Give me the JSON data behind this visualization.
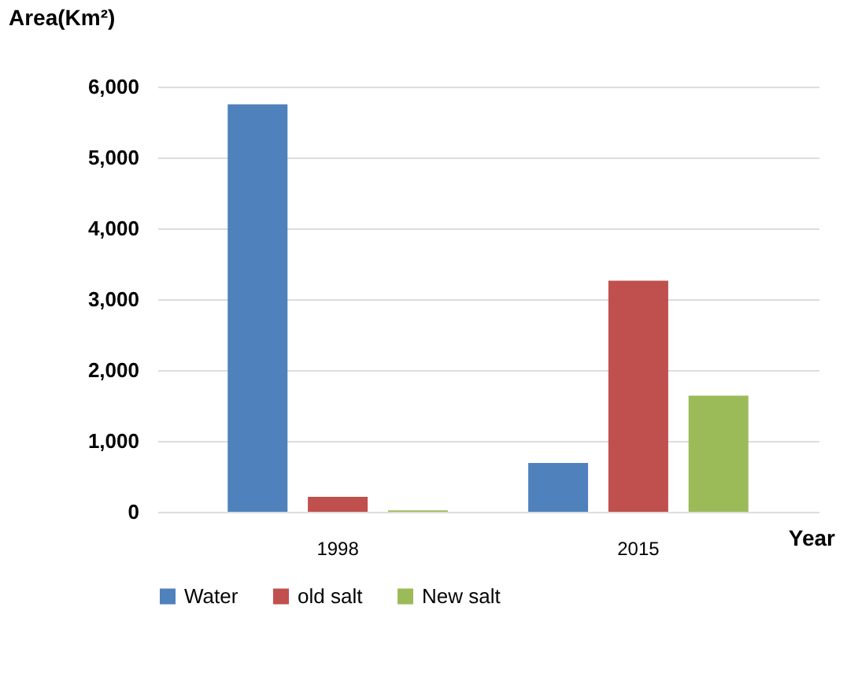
{
  "chart_data": {
    "type": "bar",
    "ylabel": "Area(Km²)",
    "xlabel": "Year",
    "categories": [
      "1998",
      "2015"
    ],
    "series": [
      {
        "name": "Water",
        "color": "#4f81bd",
        "values": [
          5750,
          690
        ]
      },
      {
        "name": "old salt",
        "color": "#c0504d",
        "values": [
          210,
          3260
        ]
      },
      {
        "name": "New salt",
        "color": "#9bbb59",
        "values": [
          20,
          1640
        ]
      }
    ],
    "ylim": [
      0,
      6000
    ],
    "yticks": [
      0,
      {
        "value": 1000,
        "label": "1,000"
      },
      {
        "value": 2000,
        "label": "2,000"
      },
      {
        "value": 3000,
        "label": "3,000"
      },
      {
        "value": 4000,
        "label": "4,000"
      },
      {
        "value": 5000,
        "label": "5,000"
      },
      {
        "value": 6000,
        "label": "6,000"
      }
    ],
    "grid": "y",
    "legend": "bottom"
  }
}
